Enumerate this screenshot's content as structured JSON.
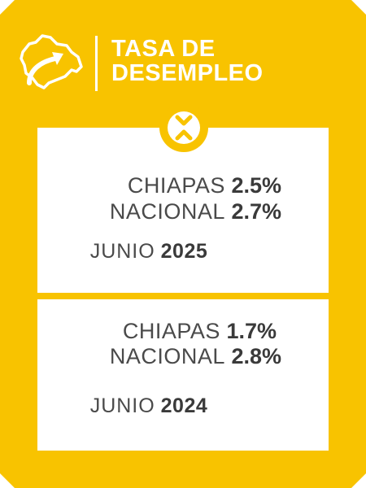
{
  "header": {
    "title_line1": "TASA DE",
    "title_line2": "DESEMPLEO",
    "icon": "chiapas-map-arrow-icon",
    "background_color": "#f8c300"
  },
  "badge": {
    "icon": "double-chevron-icon"
  },
  "panels": [
    {
      "rows": [
        {
          "label": "CHIAPAS",
          "value": "2.5%"
        },
        {
          "label": "NACIONAL",
          "value": "2.7%"
        }
      ],
      "date_label": "JUNIO",
      "date_year": "2025"
    },
    {
      "rows": [
        {
          "label": "CHIAPAS",
          "value": "1.7%"
        },
        {
          "label": "NACIONAL",
          "value": "2.8%"
        }
      ],
      "date_label": "JUNIO",
      "date_year": "2024"
    }
  ]
}
